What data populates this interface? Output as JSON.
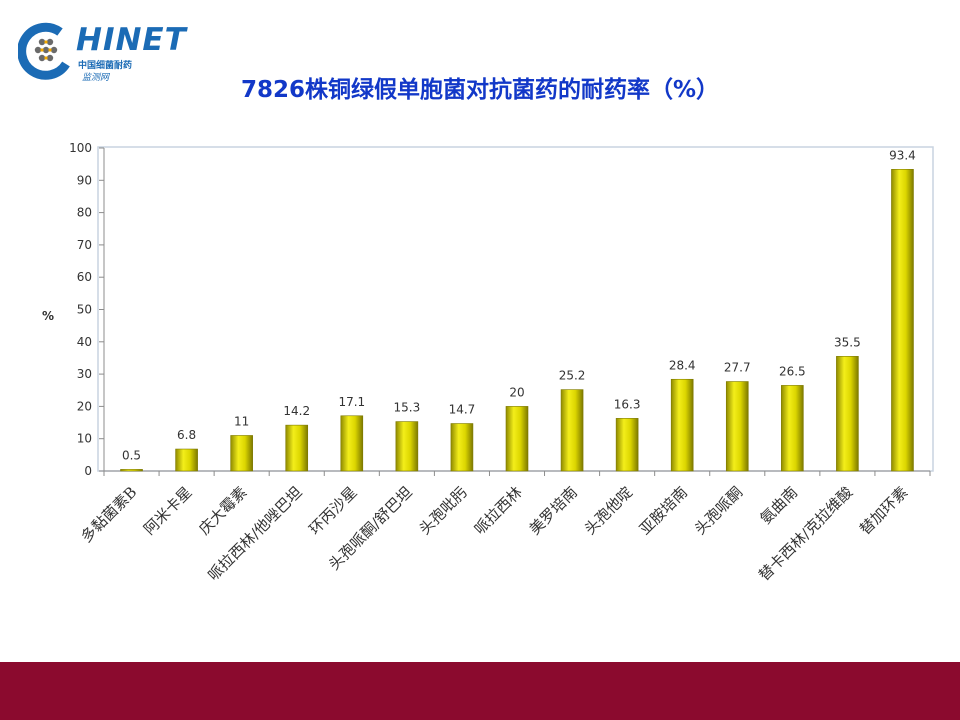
{
  "logo": {
    "text": "HINET",
    "sub1": "中国细菌耐药",
    "sub2": "监测网"
  },
  "title": "7826株铜绿假单胞菌对抗菌药的耐药率（%）",
  "chart_data": {
    "type": "bar",
    "ylabel": "%",
    "xlabel": "",
    "ylim": [
      0,
      100
    ],
    "yticks": [
      0,
      10,
      20,
      30,
      40,
      50,
      60,
      70,
      80,
      90,
      100
    ],
    "categories": [
      "多黏菌素B",
      "阿米卡星",
      "庆大霉素",
      "哌拉西林/他唑巴坦",
      "环丙沙星",
      "头孢哌酮/舒巴坦",
      "头孢吡肟",
      "哌拉西林",
      "美罗培南",
      "头孢他啶",
      "亚胺培南",
      "头孢哌酮",
      "氨曲南",
      "替卡西林/克拉维酸",
      "替加环素"
    ],
    "values": [
      0.5,
      6.8,
      11,
      14.2,
      17.1,
      15.3,
      14.7,
      20,
      25.2,
      16.3,
      28.4,
      27.7,
      26.5,
      35.5,
      93.4
    ],
    "labels": [
      "0.5",
      "6.8",
      "11",
      "14.2",
      "17.1",
      "15.3",
      "14.7",
      "20",
      "25.2",
      "16.3",
      "28.4",
      "27.7",
      "26.5",
      "35.5",
      "93.4"
    ],
    "bar_color": "#c8c400",
    "grid": false,
    "legend": "none"
  }
}
